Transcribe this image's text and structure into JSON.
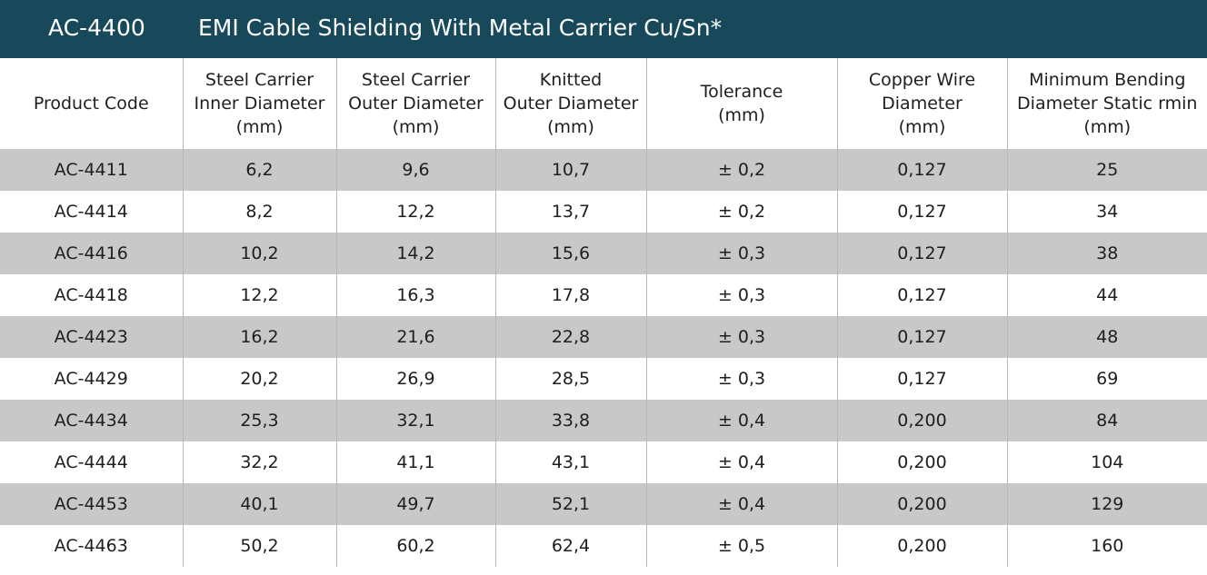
{
  "title": {
    "code": "AC-4400",
    "text": "EMI Cable Shielding With Metal Carrier Cu/Sn*"
  },
  "table": {
    "columns": [
      [
        "Product Code"
      ],
      [
        "Steel Carrier",
        "Inner Diameter",
        "(mm)"
      ],
      [
        "Steel Carrier",
        "Outer Diameter",
        "(mm)"
      ],
      [
        "Knitted",
        "Outer Diameter",
        "(mm)"
      ],
      [
        "Tolerance",
        "(mm)"
      ],
      [
        "Copper Wire",
        "Diameter",
        "(mm)"
      ],
      [
        "Minimum Bending",
        "Diameter Static rmin",
        "(mm)"
      ]
    ],
    "rows": [
      [
        "AC-4411",
        "6,2",
        "9,6",
        "10,7",
        "± 0,2",
        "0,127",
        "25"
      ],
      [
        "AC-4414",
        "8,2",
        "12,2",
        "13,7",
        "± 0,2",
        "0,127",
        "34"
      ],
      [
        "AC-4416",
        "10,2",
        "14,2",
        "15,6",
        "± 0,3",
        "0,127",
        "38"
      ],
      [
        "AC-4418",
        "12,2",
        "16,3",
        "17,8",
        "± 0,3",
        "0,127",
        "44"
      ],
      [
        "AC-4423",
        "16,2",
        "21,6",
        "22,8",
        "± 0,3",
        "0,127",
        "48"
      ],
      [
        "AC-4429",
        "20,2",
        "26,9",
        "28,5",
        "± 0,3",
        "0,127",
        "69"
      ],
      [
        "AC-4434",
        "25,3",
        "32,1",
        "33,8",
        "± 0,4",
        "0,200",
        "84"
      ],
      [
        "AC-4444",
        "32,2",
        "41,1",
        "43,1",
        "± 0,4",
        "0,200",
        "104"
      ],
      [
        "AC-4453",
        "40,1",
        "49,7",
        "52,1",
        "± 0,4",
        "0,200",
        "129"
      ],
      [
        "AC-4463",
        "50,2",
        "60,2",
        "62,4",
        "± 0,5",
        "0,200",
        "160"
      ]
    ]
  },
  "colors": {
    "header_bar": "#17495a",
    "stripe": "#c8c8c8",
    "grid": "#b7b7b7"
  }
}
